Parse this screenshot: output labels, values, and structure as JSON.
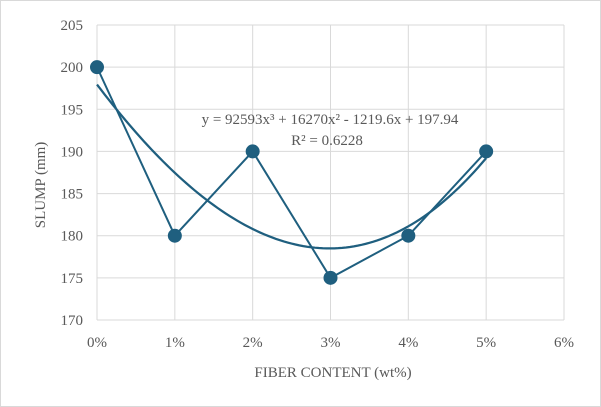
{
  "chart_data": {
    "type": "line",
    "xlabel": "FIBER CONTENT (wt%)",
    "ylabel": "SLUMP (mm)",
    "x_ticks": [
      "0%",
      "1%",
      "2%",
      "3%",
      "4%",
      "5%",
      "6%"
    ],
    "y_ticks": [
      "170",
      "175",
      "180",
      "185",
      "190",
      "195",
      "200",
      "205"
    ],
    "xlim": [
      0,
      0.06
    ],
    "ylim": [
      170,
      205
    ],
    "grid": true,
    "series": [
      {
        "x": [
          0,
          0.01,
          0.02,
          0.03,
          0.04,
          0.05
        ],
        "values": [
          200,
          180,
          190,
          175,
          180,
          190
        ]
      }
    ],
    "trendline": {
      "type": "polynomial-3",
      "coefficients": [
        92593,
        16270,
        -1219.6,
        197.94
      ],
      "equation": "y = 92593x³ + 16270x² - 1219.6x + 197.94",
      "r_squared": "R² = 0.6228"
    },
    "colors": {
      "series": "#1f5f7f",
      "marker": "#1f5f7f",
      "grid": "#d9d9d9",
      "text": "#595959"
    }
  }
}
